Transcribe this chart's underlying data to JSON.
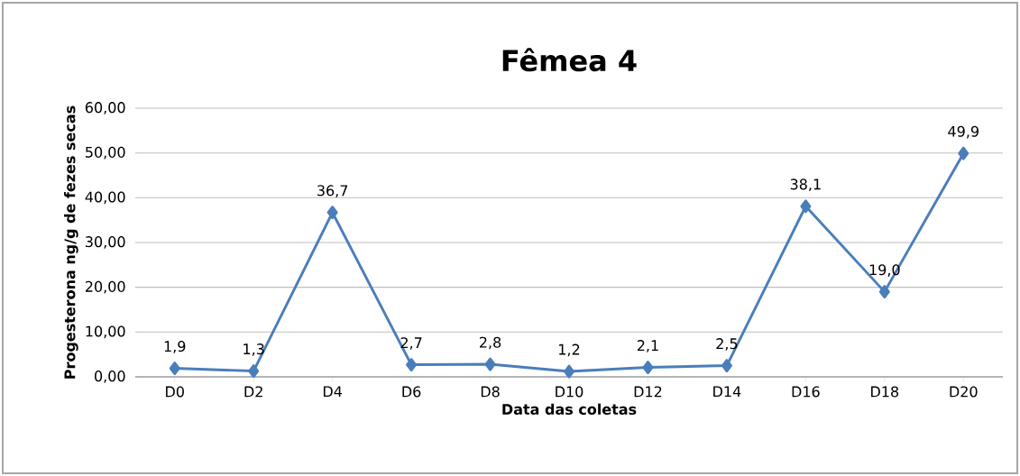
{
  "chart_data": {
    "type": "line",
    "title": "Fêmea 4",
    "xlabel": "Data das coletas",
    "ylabel": "Progesterona ng/g de fezes secas",
    "categories": [
      "D0",
      "D2",
      "D4",
      "D6",
      "D8",
      "D10",
      "D12",
      "D14",
      "D16",
      "D18",
      "D20"
    ],
    "series": [
      {
        "color": "#4a7ebb",
        "values": [
          1.9,
          1.3,
          36.7,
          2.7,
          2.8,
          1.2,
          2.1,
          2.5,
          38.1,
          19.0,
          49.9
        ],
        "value_labels": [
          "1,9",
          "1,3",
          "36,7",
          "2,7",
          "2,8",
          "1,2",
          "2,1",
          "2,5",
          "38,1",
          "19,0",
          "49,9"
        ]
      }
    ],
    "ylim": [
      0,
      60
    ],
    "yticks": [
      {
        "value": 0,
        "label": "0,00"
      },
      {
        "value": 10,
        "label": "10,00"
      },
      {
        "value": 20,
        "label": "20,00"
      },
      {
        "value": 30,
        "label": "30,00"
      },
      {
        "value": 40,
        "label": "40,00"
      },
      {
        "value": 50,
        "label": "50,00"
      },
      {
        "value": 60,
        "label": "60,00"
      }
    ],
    "grid": "y",
    "marker": "diamond",
    "line_style": "solid"
  }
}
